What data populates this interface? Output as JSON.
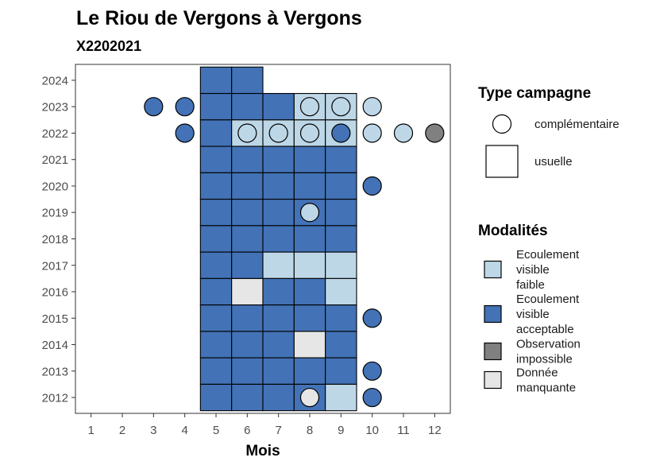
{
  "chart_data": {
    "type": "heatmap",
    "title": "Le Riou de Vergons à Vergons",
    "subtitle": "X2202021",
    "xlabel": "Mois",
    "ylabel": "",
    "x_ticks": [
      1,
      2,
      3,
      4,
      5,
      6,
      7,
      8,
      9,
      10,
      11,
      12
    ],
    "y_ticks": [
      2012,
      2013,
      2014,
      2015,
      2016,
      2017,
      2018,
      2019,
      2020,
      2021,
      2022,
      2023,
      2024
    ],
    "xlim": [
      0.5,
      12.5
    ],
    "ylim": [
      2011.4,
      2024.6
    ],
    "grid": false,
    "colors": {
      "Ecoulement visible faible": "#bdd7e7",
      "Ecoulement visible acceptable": "#4372b6",
      "Observation impossible": "#808080",
      "Donnée manquante": "#e6e6e6"
    },
    "tiles_usuelle": [
      {
        "year": 2024,
        "month": 5,
        "modalite": "Ecoulement visible acceptable"
      },
      {
        "year": 2024,
        "month": 6,
        "modalite": "Ecoulement visible acceptable"
      },
      {
        "year": 2023,
        "month": 5,
        "modalite": "Ecoulement visible acceptable"
      },
      {
        "year": 2023,
        "month": 6,
        "modalite": "Ecoulement visible acceptable"
      },
      {
        "year": 2023,
        "month": 7,
        "modalite": "Ecoulement visible acceptable"
      },
      {
        "year": 2023,
        "month": 8,
        "modalite": "Ecoulement visible faible"
      },
      {
        "year": 2023,
        "month": 9,
        "modalite": "Ecoulement visible faible"
      },
      {
        "year": 2022,
        "month": 5,
        "modalite": "Ecoulement visible acceptable"
      },
      {
        "year": 2022,
        "month": 6,
        "modalite": "Ecoulement visible faible"
      },
      {
        "year": 2022,
        "month": 7,
        "modalite": "Ecoulement visible faible"
      },
      {
        "year": 2022,
        "month": 8,
        "modalite": "Ecoulement visible faible"
      },
      {
        "year": 2022,
        "month": 9,
        "modalite": "Ecoulement visible faible"
      },
      {
        "year": 2021,
        "month": 5,
        "modalite": "Ecoulement visible acceptable"
      },
      {
        "year": 2021,
        "month": 6,
        "modalite": "Ecoulement visible acceptable"
      },
      {
        "year": 2021,
        "month": 7,
        "modalite": "Ecoulement visible acceptable"
      },
      {
        "year": 2021,
        "month": 8,
        "modalite": "Ecoulement visible acceptable"
      },
      {
        "year": 2021,
        "month": 9,
        "modalite": "Ecoulement visible acceptable"
      },
      {
        "year": 2020,
        "month": 5,
        "modalite": "Ecoulement visible acceptable"
      },
      {
        "year": 2020,
        "month": 6,
        "modalite": "Ecoulement visible acceptable"
      },
      {
        "year": 2020,
        "month": 7,
        "modalite": "Ecoulement visible acceptable"
      },
      {
        "year": 2020,
        "month": 8,
        "modalite": "Ecoulement visible acceptable"
      },
      {
        "year": 2020,
        "month": 9,
        "modalite": "Ecoulement visible acceptable"
      },
      {
        "year": 2019,
        "month": 5,
        "modalite": "Ecoulement visible acceptable"
      },
      {
        "year": 2019,
        "month": 6,
        "modalite": "Ecoulement visible acceptable"
      },
      {
        "year": 2019,
        "month": 7,
        "modalite": "Ecoulement visible acceptable"
      },
      {
        "year": 2019,
        "month": 8,
        "modalite": "Ecoulement visible acceptable"
      },
      {
        "year": 2019,
        "month": 9,
        "modalite": "Ecoulement visible acceptable"
      },
      {
        "year": 2018,
        "month": 5,
        "modalite": "Ecoulement visible acceptable"
      },
      {
        "year": 2018,
        "month": 6,
        "modalite": "Ecoulement visible acceptable"
      },
      {
        "year": 2018,
        "month": 7,
        "modalite": "Ecoulement visible acceptable"
      },
      {
        "year": 2018,
        "month": 8,
        "modalite": "Ecoulement visible acceptable"
      },
      {
        "year": 2018,
        "month": 9,
        "modalite": "Ecoulement visible acceptable"
      },
      {
        "year": 2017,
        "month": 5,
        "modalite": "Ecoulement visible acceptable"
      },
      {
        "year": 2017,
        "month": 6,
        "modalite": "Ecoulement visible acceptable"
      },
      {
        "year": 2017,
        "month": 7,
        "modalite": "Ecoulement visible faible"
      },
      {
        "year": 2017,
        "month": 8,
        "modalite": "Ecoulement visible faible"
      },
      {
        "year": 2017,
        "month": 9,
        "modalite": "Ecoulement visible faible"
      },
      {
        "year": 2016,
        "month": 5,
        "modalite": "Ecoulement visible acceptable"
      },
      {
        "year": 2016,
        "month": 6,
        "modalite": "Donnée manquante"
      },
      {
        "year": 2016,
        "month": 7,
        "modalite": "Ecoulement visible acceptable"
      },
      {
        "year": 2016,
        "month": 8,
        "modalite": "Ecoulement visible acceptable"
      },
      {
        "year": 2016,
        "month": 9,
        "modalite": "Ecoulement visible faible"
      },
      {
        "year": 2015,
        "month": 5,
        "modalite": "Ecoulement visible acceptable"
      },
      {
        "year": 2015,
        "month": 6,
        "modalite": "Ecoulement visible acceptable"
      },
      {
        "year": 2015,
        "month": 7,
        "modalite": "Ecoulement visible acceptable"
      },
      {
        "year": 2015,
        "month": 8,
        "modalite": "Ecoulement visible acceptable"
      },
      {
        "year": 2015,
        "month": 9,
        "modalite": "Ecoulement visible acceptable"
      },
      {
        "year": 2014,
        "month": 5,
        "modalite": "Ecoulement visible acceptable"
      },
      {
        "year": 2014,
        "month": 6,
        "modalite": "Ecoulement visible acceptable"
      },
      {
        "year": 2014,
        "month": 7,
        "modalite": "Ecoulement visible acceptable"
      },
      {
        "year": 2014,
        "month": 8,
        "modalite": "Donnée manquante"
      },
      {
        "year": 2014,
        "month": 9,
        "modalite": "Ecoulement visible acceptable"
      },
      {
        "year": 2013,
        "month": 5,
        "modalite": "Ecoulement visible acceptable"
      },
      {
        "year": 2013,
        "month": 6,
        "modalite": "Ecoulement visible acceptable"
      },
      {
        "year": 2013,
        "month": 7,
        "modalite": "Ecoulement visible acceptable"
      },
      {
        "year": 2013,
        "month": 8,
        "modalite": "Ecoulement visible acceptable"
      },
      {
        "year": 2013,
        "month": 9,
        "modalite": "Ecoulement visible acceptable"
      },
      {
        "year": 2012,
        "month": 5,
        "modalite": "Ecoulement visible acceptable"
      },
      {
        "year": 2012,
        "month": 6,
        "modalite": "Ecoulement visible acceptable"
      },
      {
        "year": 2012,
        "month": 7,
        "modalite": "Ecoulement visible acceptable"
      },
      {
        "year": 2012,
        "month": 8,
        "modalite": "Ecoulement visible acceptable"
      },
      {
        "year": 2012,
        "month": 9,
        "modalite": "Ecoulement visible faible"
      }
    ],
    "points_complementaire": [
      {
        "year": 2023,
        "month": 3,
        "modalite": "Ecoulement visible acceptable"
      },
      {
        "year": 2023,
        "month": 4,
        "modalite": "Ecoulement visible acceptable"
      },
      {
        "year": 2023,
        "month": 8,
        "modalite": "Ecoulement visible faible"
      },
      {
        "year": 2023,
        "month": 9,
        "modalite": "Ecoulement visible faible"
      },
      {
        "year": 2023,
        "month": 10,
        "modalite": "Ecoulement visible faible"
      },
      {
        "year": 2022,
        "month": 4,
        "modalite": "Ecoulement visible acceptable"
      },
      {
        "year": 2022,
        "month": 6,
        "modalite": "Ecoulement visible faible"
      },
      {
        "year": 2022,
        "month": 7,
        "modalite": "Ecoulement visible faible"
      },
      {
        "year": 2022,
        "month": 8,
        "modalite": "Ecoulement visible faible"
      },
      {
        "year": 2022,
        "month": 9,
        "modalite": "Ecoulement visible acceptable"
      },
      {
        "year": 2022,
        "month": 10,
        "modalite": "Ecoulement visible faible"
      },
      {
        "year": 2022,
        "month": 11,
        "modalite": "Ecoulement visible faible"
      },
      {
        "year": 2022,
        "month": 12,
        "modalite": "Observation impossible"
      },
      {
        "year": 2020,
        "month": 10,
        "modalite": "Ecoulement visible acceptable"
      },
      {
        "year": 2019,
        "month": 8,
        "modalite": "Ecoulement visible faible"
      },
      {
        "year": 2015,
        "month": 10,
        "modalite": "Ecoulement visible acceptable"
      },
      {
        "year": 2013,
        "month": 10,
        "modalite": "Ecoulement visible acceptable"
      },
      {
        "year": 2012,
        "month": 8,
        "modalite": "Donnée manquante"
      },
      {
        "year": 2012,
        "month": 10,
        "modalite": "Ecoulement visible acceptable"
      }
    ],
    "legend": {
      "placement": "right",
      "type_title": "Type campagne",
      "type_items": [
        {
          "shape": "circle",
          "label": "complémentaire"
        },
        {
          "shape": "square",
          "label": "usuelle"
        }
      ],
      "modalites_title": "Modalités",
      "modalites_items": [
        {
          "key": "Ecoulement visible faible",
          "lines": [
            "Ecoulement",
            "visible",
            "faible"
          ]
        },
        {
          "key": "Ecoulement visible acceptable",
          "lines": [
            "Ecoulement",
            "visible",
            "acceptable"
          ]
        },
        {
          "key": "Observation impossible",
          "lines": [
            "Observation",
            "impossible"
          ]
        },
        {
          "key": "Donnée manquante",
          "lines": [
            "Donnée",
            "manquante"
          ]
        }
      ]
    }
  }
}
